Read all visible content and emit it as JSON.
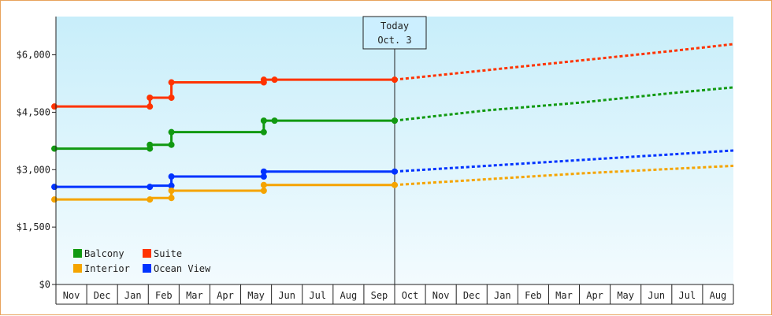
{
  "chart_data": {
    "type": "line",
    "colors": {
      "background_top": "#c8eefa",
      "background_bottom": "#f3fbfe",
      "axis": "#222222",
      "Balcony": "#119911",
      "Suite": "#ff3300",
      "Interior": "#f5a400",
      "Ocean View": "#0033ff"
    },
    "y_axis": {
      "min": 0,
      "max": 7000,
      "ticks": [
        0,
        1500,
        3000,
        4500,
        6000
      ],
      "tick_labels": [
        "$0",
        "$1,500",
        "$3,000",
        "$4,500",
        "$6,000"
      ]
    },
    "x_axis": {
      "months": [
        "Nov",
        "Dec",
        "Jan",
        "Feb",
        "Mar",
        "Apr",
        "May",
        "Jun",
        "Jul",
        "Aug",
        "Sep",
        "Oct",
        "Nov",
        "Dec",
        "Jan",
        "Feb",
        "Mar",
        "Apr",
        "May",
        "Jun",
        "Jul",
        "Aug"
      ],
      "month_boundaries": [
        0,
        1,
        2,
        3,
        4,
        5,
        6,
        7,
        8,
        9,
        10,
        11,
        12,
        13,
        14,
        15,
        16,
        17,
        18,
        19,
        20,
        21,
        22
      ],
      "total_months": 22
    },
    "today": {
      "label_line1": "Today",
      "label_line2": "Oct. 3",
      "x": 11.0
    },
    "legend": {
      "placement": "bottom-left",
      "entries": [
        {
          "name": "Balcony",
          "color": "#119911"
        },
        {
          "name": "Suite",
          "color": "#ff3300"
        },
        {
          "name": "Interior",
          "color": "#f5a400"
        },
        {
          "name": "Ocean View",
          "color": "#0033ff"
        }
      ]
    },
    "series": [
      {
        "name": "Suite",
        "color": "#ff3300",
        "history": [
          [
            -0.05,
            4650
          ],
          [
            3.05,
            4650
          ],
          [
            3.05,
            4880
          ],
          [
            3.75,
            4880
          ],
          [
            3.75,
            5280
          ],
          [
            6.75,
            5280
          ],
          [
            6.75,
            5350
          ],
          [
            7.1,
            5350
          ],
          [
            11.0,
            5350
          ]
        ],
        "markers": [
          [
            -0.05,
            4650
          ],
          [
            3.05,
            4650
          ],
          [
            3.05,
            4880
          ],
          [
            3.75,
            4880
          ],
          [
            3.75,
            5280
          ],
          [
            6.75,
            5280
          ],
          [
            6.75,
            5350
          ],
          [
            7.1,
            5350
          ],
          [
            11.0,
            5350
          ]
        ],
        "forecast": [
          [
            11.0,
            5350
          ],
          [
            14.0,
            5600
          ],
          [
            17.0,
            5850
          ],
          [
            20.0,
            6100
          ],
          [
            22.0,
            6280
          ]
        ]
      },
      {
        "name": "Balcony",
        "color": "#119911",
        "history": [
          [
            -0.05,
            3550
          ],
          [
            3.05,
            3550
          ],
          [
            3.05,
            3650
          ],
          [
            3.75,
            3650
          ],
          [
            3.75,
            3980
          ],
          [
            6.75,
            3980
          ],
          [
            6.75,
            4280
          ],
          [
            7.1,
            4280
          ],
          [
            11.0,
            4280
          ]
        ],
        "markers": [
          [
            -0.05,
            3550
          ],
          [
            3.05,
            3550
          ],
          [
            3.05,
            3650
          ],
          [
            3.75,
            3650
          ],
          [
            3.75,
            3980
          ],
          [
            6.75,
            3980
          ],
          [
            6.75,
            4280
          ],
          [
            7.1,
            4280
          ],
          [
            11.0,
            4280
          ]
        ],
        "forecast": [
          [
            11.0,
            4280
          ],
          [
            14.0,
            4550
          ],
          [
            17.0,
            4750
          ],
          [
            20.0,
            5000
          ],
          [
            22.0,
            5150
          ]
        ]
      },
      {
        "name": "Ocean View",
        "color": "#0033ff",
        "history": [
          [
            -0.05,
            2550
          ],
          [
            3.05,
            2550
          ],
          [
            3.05,
            2580
          ],
          [
            3.75,
            2580
          ],
          [
            3.75,
            2820
          ],
          [
            6.75,
            2820
          ],
          [
            6.75,
            2950
          ],
          [
            11.0,
            2950
          ]
        ],
        "markers": [
          [
            -0.05,
            2550
          ],
          [
            3.05,
            2550
          ],
          [
            3.75,
            2580
          ],
          [
            3.75,
            2820
          ],
          [
            6.75,
            2820
          ],
          [
            6.75,
            2950
          ],
          [
            11.0,
            2950
          ]
        ],
        "forecast": [
          [
            11.0,
            2950
          ],
          [
            14.0,
            3100
          ],
          [
            17.0,
            3250
          ],
          [
            20.0,
            3400
          ],
          [
            22.0,
            3500
          ]
        ]
      },
      {
        "name": "Interior",
        "color": "#f5a400",
        "history": [
          [
            -0.05,
            2220
          ],
          [
            3.05,
            2220
          ],
          [
            3.05,
            2260
          ],
          [
            3.75,
            2260
          ],
          [
            3.75,
            2450
          ],
          [
            6.75,
            2450
          ],
          [
            6.75,
            2600
          ],
          [
            11.0,
            2600
          ]
        ],
        "markers": [
          [
            -0.05,
            2220
          ],
          [
            3.05,
            2220
          ],
          [
            3.75,
            2260
          ],
          [
            3.75,
            2450
          ],
          [
            6.75,
            2450
          ],
          [
            6.75,
            2600
          ],
          [
            11.0,
            2600
          ]
        ],
        "forecast": [
          [
            11.0,
            2600
          ],
          [
            14.0,
            2750
          ],
          [
            17.0,
            2900
          ],
          [
            20.0,
            3020
          ],
          [
            22.0,
            3100
          ]
        ]
      }
    ]
  }
}
